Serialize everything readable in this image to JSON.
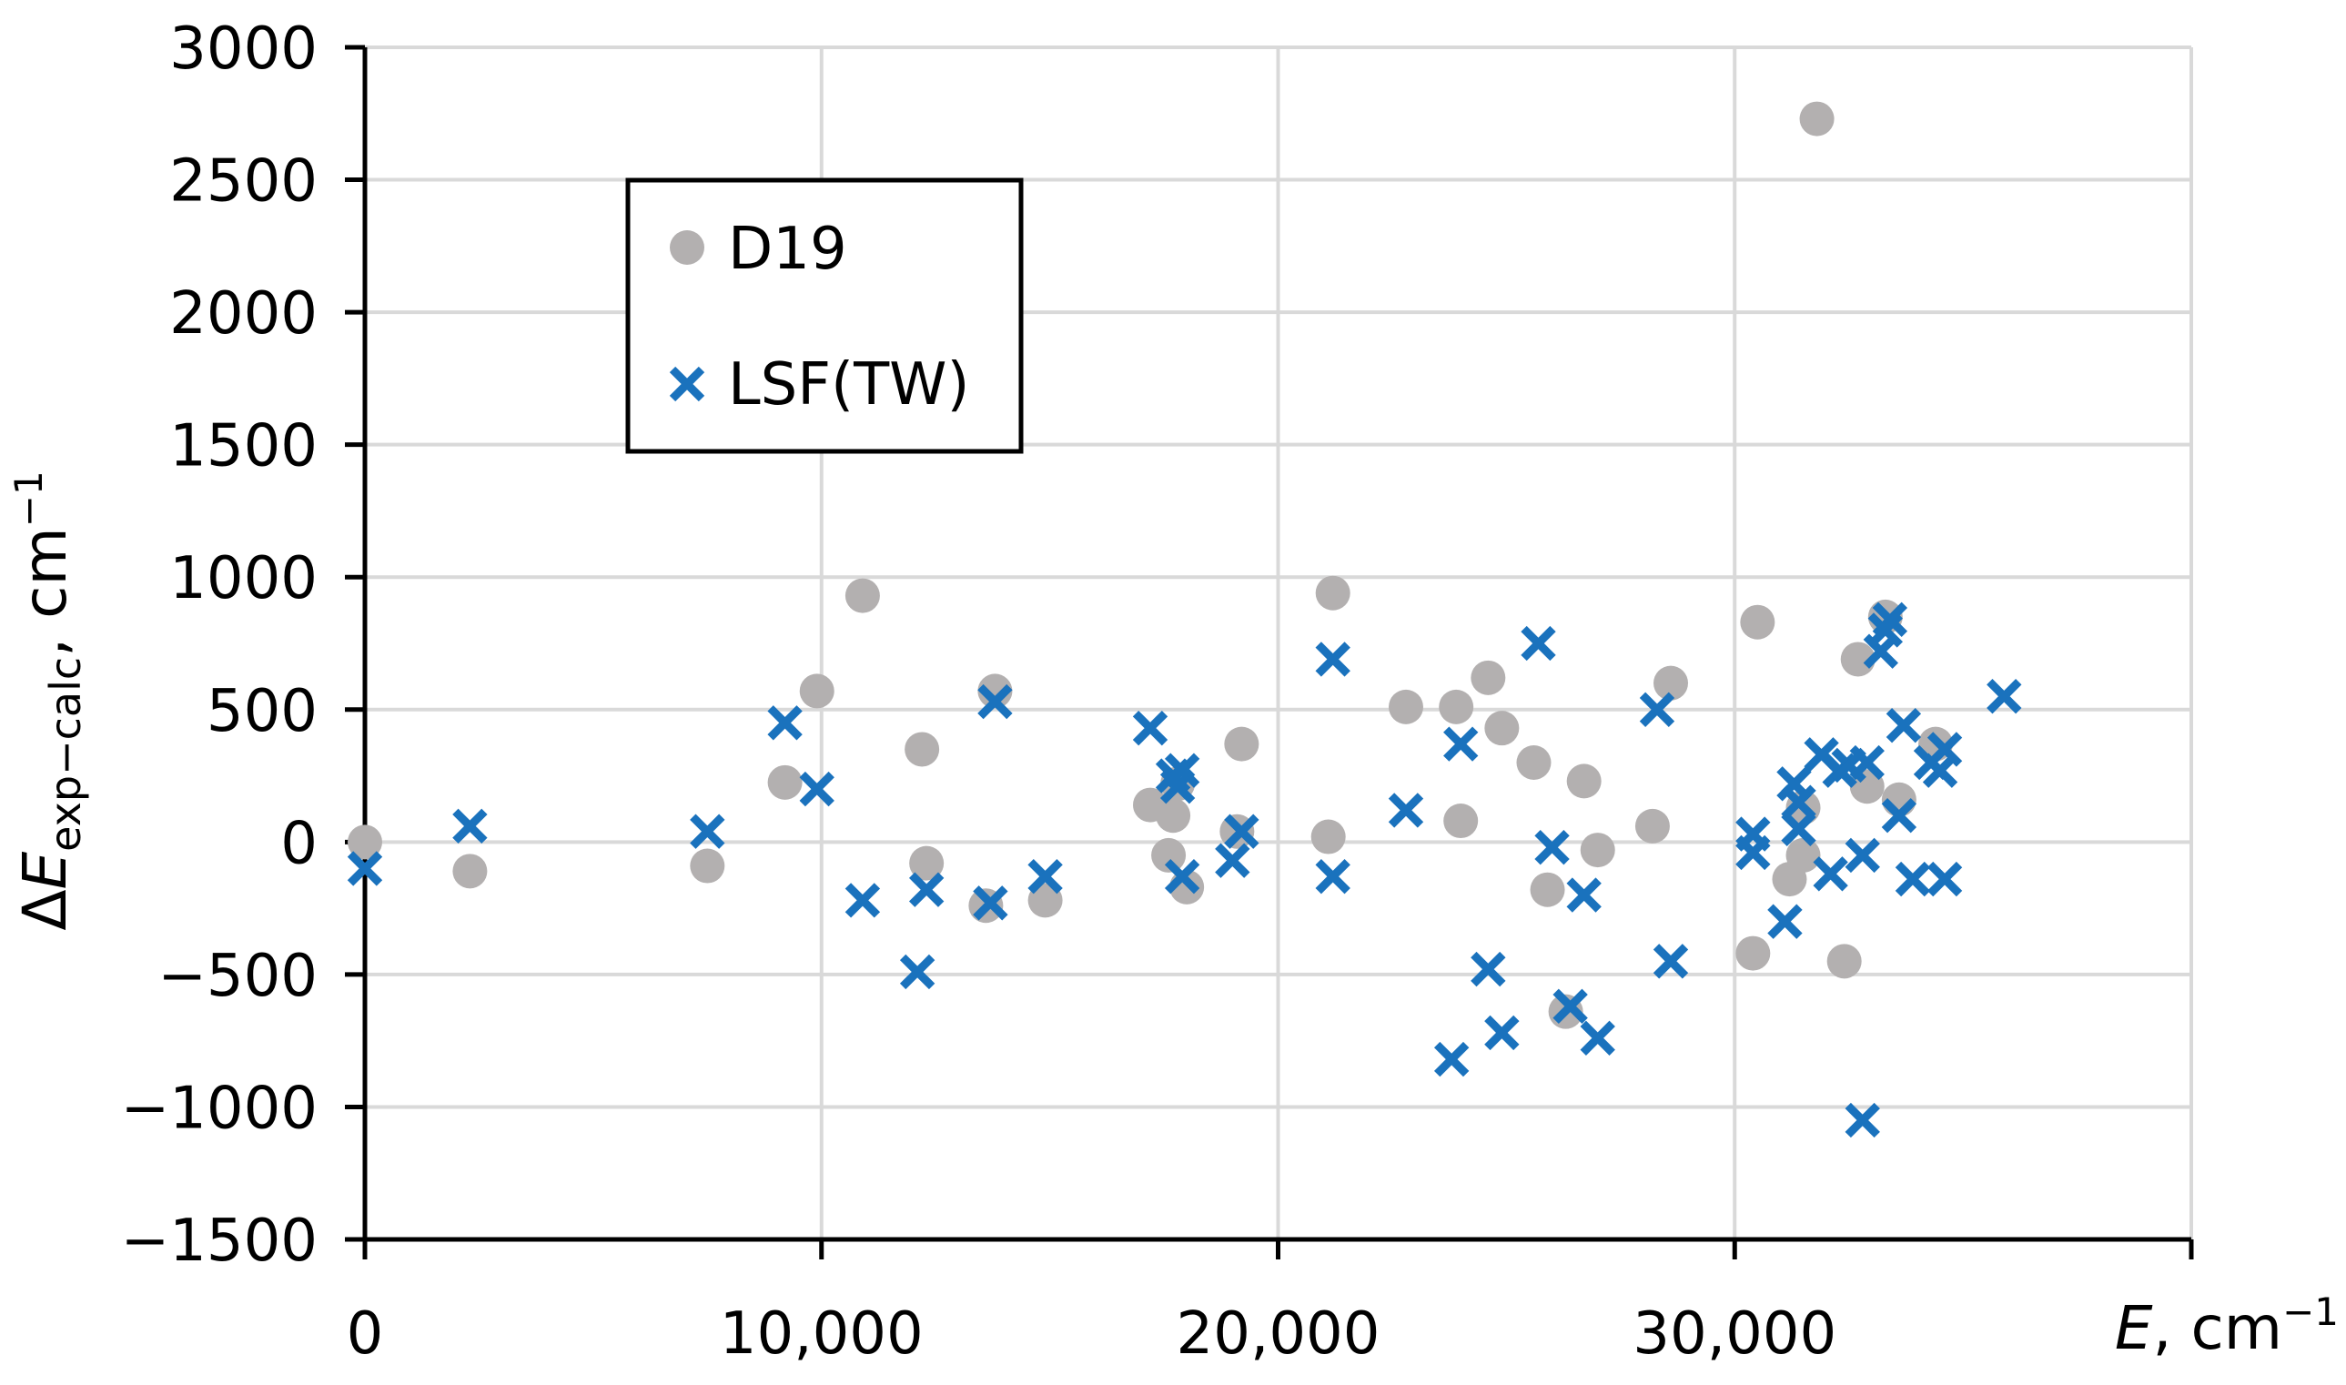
{
  "chart_data": {
    "type": "scatter",
    "xlim": [
      0,
      40000
    ],
    "ylim": [
      -1500,
      3000
    ],
    "x_ticks": [
      0,
      10000,
      20000,
      30000,
      40000
    ],
    "x_tick_labels": [
      "0",
      "10,000",
      "20,000",
      "30,000",
      ""
    ],
    "y_ticks": [
      -1500,
      -1000,
      -500,
      0,
      500,
      1000,
      1500,
      2000,
      2500,
      3000
    ],
    "y_tick_labels": [
      "−1500",
      "−1000",
      "−500",
      "0",
      "500",
      "1000",
      "1500",
      "2000",
      "2500",
      "3000"
    ],
    "xlabel": {
      "symbol": "E",
      "rest": ", cm",
      "sup": "−1"
    },
    "ylabel": {
      "prefix": "Δ",
      "symbol": "E",
      "sub": "exp−calc",
      "rest": ", cm",
      "sup": "−1"
    },
    "grid": true,
    "legend_position": "top-left",
    "series": [
      {
        "name": "D19",
        "marker": "circle",
        "color": "#b3b0b0",
        "points": [
          [
            0,
            0
          ],
          [
            2300,
            -110
          ],
          [
            7500,
            -90
          ],
          [
            9200,
            225
          ],
          [
            9900,
            570
          ],
          [
            10900,
            930
          ],
          [
            12200,
            350
          ],
          [
            12300,
            -80
          ],
          [
            13600,
            -240
          ],
          [
            13800,
            570
          ],
          [
            14900,
            -220
          ],
          [
            17200,
            140
          ],
          [
            17600,
            -50
          ],
          [
            17700,
            100
          ],
          [
            17800,
            220
          ],
          [
            18000,
            -170
          ],
          [
            19100,
            40
          ],
          [
            19200,
            370
          ],
          [
            21100,
            20
          ],
          [
            21200,
            940
          ],
          [
            22800,
            510
          ],
          [
            23900,
            510
          ],
          [
            24000,
            80
          ],
          [
            24600,
            620
          ],
          [
            24900,
            430
          ],
          [
            25600,
            300
          ],
          [
            25900,
            -180
          ],
          [
            26300,
            -640
          ],
          [
            26700,
            230
          ],
          [
            27000,
            -30
          ],
          [
            28200,
            60
          ],
          [
            28600,
            600
          ],
          [
            30400,
            -420
          ],
          [
            30500,
            830
          ],
          [
            31200,
            -140
          ],
          [
            31500,
            -50
          ],
          [
            31500,
            130
          ],
          [
            31800,
            2730
          ],
          [
            32400,
            -450
          ],
          [
            32700,
            690
          ],
          [
            32900,
            210
          ],
          [
            33300,
            850
          ],
          [
            33600,
            160
          ],
          [
            34400,
            370
          ]
        ]
      },
      {
        "name": "LSF(TW)",
        "marker": "x",
        "color": "#1a72bd",
        "points": [
          [
            0,
            -100
          ],
          [
            2300,
            60
          ],
          [
            7500,
            40
          ],
          [
            9200,
            450
          ],
          [
            9900,
            200
          ],
          [
            10900,
            -220
          ],
          [
            12100,
            -490
          ],
          [
            12300,
            -180
          ],
          [
            13700,
            -230
          ],
          [
            13800,
            530
          ],
          [
            14900,
            -130
          ],
          [
            17200,
            430
          ],
          [
            17700,
            250
          ],
          [
            17800,
            210
          ],
          [
            17900,
            -130
          ],
          [
            17900,
            270
          ],
          [
            19000,
            -70
          ],
          [
            19200,
            40
          ],
          [
            21200,
            690
          ],
          [
            21200,
            -130
          ],
          [
            22800,
            120
          ],
          [
            23800,
            -820
          ],
          [
            24000,
            370
          ],
          [
            24600,
            -480
          ],
          [
            24900,
            -720
          ],
          [
            25700,
            750
          ],
          [
            26000,
            -20
          ],
          [
            26400,
            -620
          ],
          [
            26700,
            -200
          ],
          [
            27000,
            -740
          ],
          [
            28300,
            500
          ],
          [
            28600,
            -450
          ],
          [
            30400,
            30
          ],
          [
            30400,
            -40
          ],
          [
            31100,
            -300
          ],
          [
            31300,
            220
          ],
          [
            31400,
            50
          ],
          [
            31400,
            150
          ],
          [
            31900,
            330
          ],
          [
            32100,
            -120
          ],
          [
            32300,
            270
          ],
          [
            32500,
            290
          ],
          [
            32800,
            -50
          ],
          [
            32800,
            -1050
          ],
          [
            32900,
            300
          ],
          [
            33200,
            720
          ],
          [
            33300,
            800
          ],
          [
            33400,
            840
          ],
          [
            33600,
            100
          ],
          [
            33700,
            440
          ],
          [
            33900,
            -140
          ],
          [
            34300,
            300
          ],
          [
            34500,
            270
          ],
          [
            34600,
            350
          ],
          [
            34600,
            -140
          ],
          [
            35900,
            550
          ]
        ]
      }
    ]
  }
}
